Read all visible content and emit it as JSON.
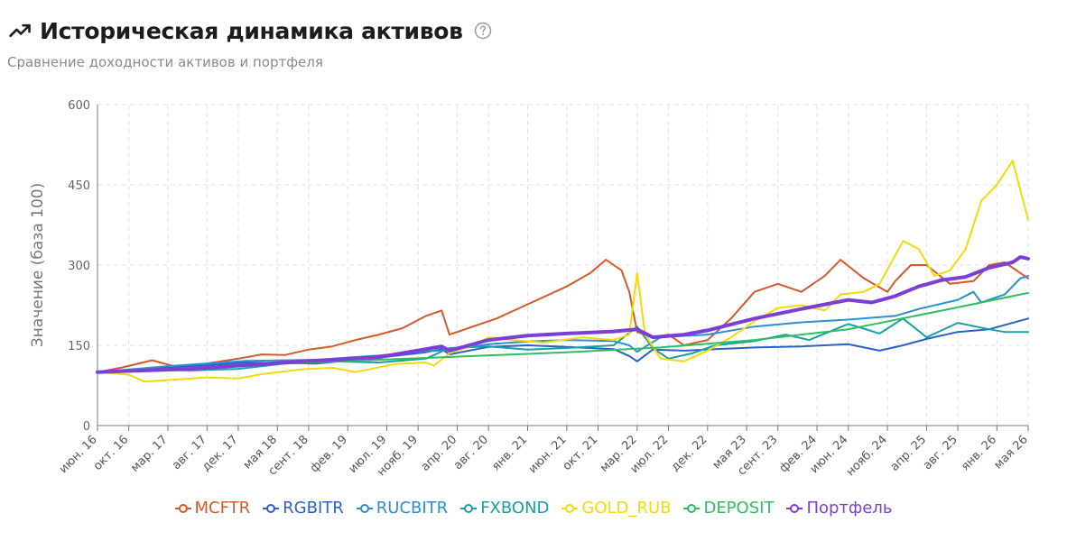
{
  "header": {
    "title": "Историческая динамика активов",
    "subtitle": "Сравнение доходности активов и портфеля",
    "trend_icon": "trending-up-icon",
    "help_icon": "question-circle-icon"
  },
  "chart_data": {
    "type": "line",
    "ylabel": "Значение (база 100)",
    "xlabel": "",
    "ylim": [
      0,
      600
    ],
    "y_ticks": [
      0,
      150,
      300,
      450,
      600
    ],
    "grid": true,
    "legend_position": "bottom",
    "x_range": [
      "2016-06",
      "2026-05"
    ],
    "x_tick_labels": [
      "июн. 16",
      "окт. 16",
      "мар. 17",
      "авг. 17",
      "дек. 17",
      "мая 18",
      "сент. 18",
      "фев. 19",
      "июл. 19",
      "нояб. 19",
      "апр. 20",
      "авг. 20",
      "янв. 21",
      "июн. 21",
      "окт. 21",
      "мар. 22",
      "июл. 22",
      "дек. 22",
      "мая 23",
      "сент. 23",
      "фев. 24",
      "июн. 24",
      "нояб. 24",
      "апр. 25",
      "авг. 25",
      "янв. 26",
      "мая 26"
    ],
    "x_tick_dates": [
      "2016-06",
      "2016-10",
      "2017-03",
      "2017-08",
      "2017-12",
      "2018-05",
      "2018-09",
      "2019-02",
      "2019-07",
      "2019-11",
      "2020-04",
      "2020-08",
      "2021-01",
      "2021-06",
      "2021-10",
      "2022-03",
      "2022-07",
      "2022-12",
      "2023-05",
      "2023-09",
      "2024-02",
      "2024-06",
      "2024-11",
      "2025-04",
      "2025-08",
      "2026-01",
      "2026-05"
    ],
    "series": [
      {
        "name": "MCFTR",
        "color": "#d45a2a",
        "width": 2,
        "points": [
          [
            "2016-06",
            100
          ],
          [
            "2016-09",
            108
          ],
          [
            "2017-01",
            122
          ],
          [
            "2017-04",
            110
          ],
          [
            "2017-08",
            116
          ],
          [
            "2017-12",
            125
          ],
          [
            "2018-03",
            133
          ],
          [
            "2018-06",
            132
          ],
          [
            "2018-09",
            142
          ],
          [
            "2018-12",
            148
          ],
          [
            "2019-03",
            160
          ],
          [
            "2019-06",
            170
          ],
          [
            "2019-09",
            182
          ],
          [
            "2019-12",
            205
          ],
          [
            "2020-02",
            215
          ],
          [
            "2020-03",
            170
          ],
          [
            "2020-06",
            185
          ],
          [
            "2020-09",
            200
          ],
          [
            "2020-12",
            220
          ],
          [
            "2021-03",
            240
          ],
          [
            "2021-06",
            260
          ],
          [
            "2021-09",
            285
          ],
          [
            "2021-11",
            310
          ],
          [
            "2022-01",
            290
          ],
          [
            "2022-02",
            250
          ],
          [
            "2022-03",
            175
          ],
          [
            "2022-05",
            165
          ],
          [
            "2022-07",
            170
          ],
          [
            "2022-09",
            150
          ],
          [
            "2022-12",
            160
          ],
          [
            "2023-03",
            200
          ],
          [
            "2023-06",
            250
          ],
          [
            "2023-09",
            265
          ],
          [
            "2023-12",
            250
          ],
          [
            "2024-03",
            280
          ],
          [
            "2024-05",
            310
          ],
          [
            "2024-08",
            275
          ],
          [
            "2024-11",
            250
          ],
          [
            "2024-12",
            270
          ],
          [
            "2025-02",
            300
          ],
          [
            "2025-04",
            300
          ],
          [
            "2025-07",
            265
          ],
          [
            "2025-10",
            270
          ],
          [
            "2025-12",
            300
          ],
          [
            "2026-02",
            305
          ],
          [
            "2026-05",
            275
          ]
        ]
      },
      {
        "name": "RGBITR",
        "color": "#2a61c8",
        "width": 2,
        "points": [
          [
            "2016-06",
            100
          ],
          [
            "2017-03",
            108
          ],
          [
            "2018-01",
            118
          ],
          [
            "2018-10",
            116
          ],
          [
            "2019-06",
            127
          ],
          [
            "2019-12",
            137
          ],
          [
            "2020-02",
            143
          ],
          [
            "2020-03",
            133
          ],
          [
            "2020-08",
            147
          ],
          [
            "2021-01",
            150
          ],
          [
            "2021-06",
            147
          ],
          [
            "2021-12",
            143
          ],
          [
            "2022-02",
            130
          ],
          [
            "2022-03",
            120
          ],
          [
            "2022-05",
            142
          ],
          [
            "2022-09",
            140
          ],
          [
            "2023-01",
            143
          ],
          [
            "2023-06",
            146
          ],
          [
            "2023-12",
            148
          ],
          [
            "2024-06",
            152
          ],
          [
            "2024-10",
            140
          ],
          [
            "2025-01",
            150
          ],
          [
            "2025-04",
            162
          ],
          [
            "2025-08",
            175
          ],
          [
            "2025-12",
            180
          ],
          [
            "2026-05",
            200
          ]
        ]
      },
      {
        "name": "RUCBITR",
        "color": "#2e8fcf",
        "width": 2,
        "points": [
          [
            "2016-06",
            100
          ],
          [
            "2017-03",
            111
          ],
          [
            "2018-01",
            121
          ],
          [
            "2018-10",
            123
          ],
          [
            "2019-06",
            131
          ],
          [
            "2019-12",
            139
          ],
          [
            "2020-03",
            141
          ],
          [
            "2020-08",
            152
          ],
          [
            "2021-01",
            157
          ],
          [
            "2021-06",
            160
          ],
          [
            "2021-12",
            158
          ],
          [
            "2022-02",
            150
          ],
          [
            "2022-03",
            138
          ],
          [
            "2022-06",
            165
          ],
          [
            "2022-12",
            170
          ],
          [
            "2023-06",
            185
          ],
          [
            "2023-12",
            193
          ],
          [
            "2024-06",
            198
          ],
          [
            "2024-12",
            205
          ],
          [
            "2025-03",
            218
          ],
          [
            "2025-08",
            235
          ],
          [
            "2025-10",
            250
          ],
          [
            "2025-11",
            230
          ],
          [
            "2026-02",
            245
          ],
          [
            "2026-04",
            275
          ],
          [
            "2026-05",
            280
          ]
        ]
      },
      {
        "name": "FXBOND",
        "color": "#18a0a6",
        "width": 2,
        "points": [
          [
            "2016-06",
            100
          ],
          [
            "2016-12",
            104
          ],
          [
            "2017-06",
            103
          ],
          [
            "2017-12",
            106
          ],
          [
            "2018-06",
            116
          ],
          [
            "2018-12",
            120
          ],
          [
            "2019-06",
            118
          ],
          [
            "2019-12",
            125
          ],
          [
            "2020-03",
            145
          ],
          [
            "2020-08",
            148
          ],
          [
            "2021-01",
            142
          ],
          [
            "2021-06",
            145
          ],
          [
            "2021-12",
            150
          ],
          [
            "2022-03",
            185
          ],
          [
            "2022-05",
            145
          ],
          [
            "2022-07",
            125
          ],
          [
            "2022-10",
            135
          ],
          [
            "2023-01",
            150
          ],
          [
            "2023-06",
            158
          ],
          [
            "2023-10",
            170
          ],
          [
            "2024-01",
            160
          ],
          [
            "2024-06",
            190
          ],
          [
            "2024-10",
            172
          ],
          [
            "2025-01",
            200
          ],
          [
            "2025-04",
            165
          ],
          [
            "2025-08",
            192
          ],
          [
            "2025-12",
            180
          ],
          [
            "2026-02",
            175
          ],
          [
            "2026-05",
            175
          ]
        ]
      },
      {
        "name": "GOLD_RUB",
        "color": "#f5d90a",
        "width": 2,
        "points": [
          [
            "2016-06",
            100
          ],
          [
            "2016-10",
            95
          ],
          [
            "2016-12",
            82
          ],
          [
            "2017-04",
            86
          ],
          [
            "2017-08",
            90
          ],
          [
            "2017-12",
            88
          ],
          [
            "2018-03",
            96
          ],
          [
            "2018-08",
            105
          ],
          [
            "2018-12",
            108
          ],
          [
            "2019-03",
            100
          ],
          [
            "2019-08",
            115
          ],
          [
            "2019-12",
            118
          ],
          [
            "2020-01",
            112
          ],
          [
            "2020-03",
            135
          ],
          [
            "2020-06",
            150
          ],
          [
            "2020-08",
            165
          ],
          [
            "2020-11",
            160
          ],
          [
            "2021-03",
            155
          ],
          [
            "2021-08",
            165
          ],
          [
            "2021-12",
            160
          ],
          [
            "2022-02",
            170
          ],
          [
            "2022-03",
            285
          ],
          [
            "2022-04",
            170
          ],
          [
            "2022-06",
            125
          ],
          [
            "2022-09",
            120
          ],
          [
            "2022-12",
            140
          ],
          [
            "2023-03",
            165
          ],
          [
            "2023-06",
            195
          ],
          [
            "2023-09",
            220
          ],
          [
            "2023-12",
            225
          ],
          [
            "2024-03",
            215
          ],
          [
            "2024-05",
            245
          ],
          [
            "2024-08",
            250
          ],
          [
            "2024-10",
            265
          ],
          [
            "2025-01",
            345
          ],
          [
            "2025-03",
            330
          ],
          [
            "2025-05",
            280
          ],
          [
            "2025-07",
            290
          ],
          [
            "2025-09",
            330
          ],
          [
            "2025-11",
            420
          ],
          [
            "2026-01",
            450
          ],
          [
            "2026-03",
            495
          ],
          [
            "2026-04",
            440
          ],
          [
            "2026-05",
            385
          ]
        ]
      },
      {
        "name": "DEPOSIT",
        "color": "#2dbf5f",
        "width": 2,
        "points": [
          [
            "2016-06",
            100
          ],
          [
            "2017-06",
            108
          ],
          [
            "2018-06",
            116
          ],
          [
            "2019-06",
            123
          ],
          [
            "2020-06",
            130
          ],
          [
            "2021-06",
            137
          ],
          [
            "2022-06",
            146
          ],
          [
            "2023-06",
            160
          ],
          [
            "2024-06",
            180
          ],
          [
            "2025-06",
            215
          ],
          [
            "2026-05",
            248
          ]
        ]
      },
      {
        "name": "Портфель",
        "color": "#7b3fd8",
        "width": 4,
        "points": [
          [
            "2016-06",
            100
          ],
          [
            "2017-06",
            106
          ],
          [
            "2018-06",
            118
          ],
          [
            "2019-06",
            128
          ],
          [
            "2020-02",
            148
          ],
          [
            "2020-03",
            140
          ],
          [
            "2020-08",
            160
          ],
          [
            "2021-01",
            168
          ],
          [
            "2021-06",
            172
          ],
          [
            "2021-12",
            176
          ],
          [
            "2022-03",
            180
          ],
          [
            "2022-05",
            165
          ],
          [
            "2022-09",
            170
          ],
          [
            "2022-12",
            178
          ],
          [
            "2023-06",
            200
          ],
          [
            "2023-12",
            218
          ],
          [
            "2024-06",
            235
          ],
          [
            "2024-09",
            230
          ],
          [
            "2024-12",
            242
          ],
          [
            "2025-03",
            260
          ],
          [
            "2025-06",
            272
          ],
          [
            "2025-09",
            278
          ],
          [
            "2025-12",
            295
          ],
          [
            "2026-03",
            305
          ],
          [
            "2026-04",
            315
          ],
          [
            "2026-05",
            312
          ]
        ]
      }
    ]
  }
}
